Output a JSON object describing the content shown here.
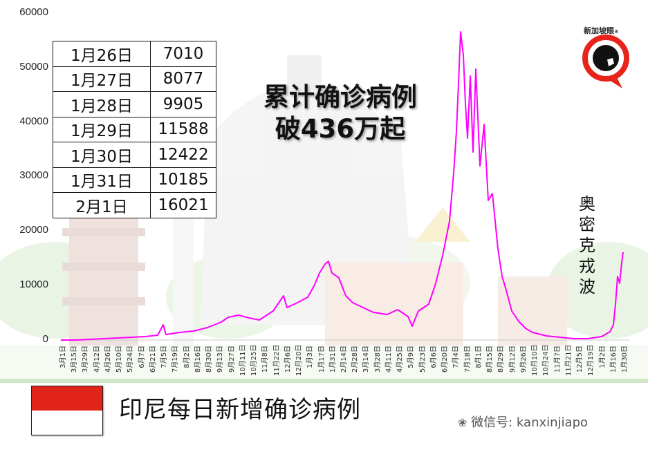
{
  "headline": {
    "line1": "累计确诊病例",
    "line2": "破436万起"
  },
  "footer": {
    "title": "印尼每日新增确诊病例",
    "wechat_label": "微信号: kanxinjiapo",
    "flag": {
      "top_color": "#e0241a",
      "bottom_color": "#ffffff"
    }
  },
  "logo": {
    "text": "新加坡眼",
    "registered": "®",
    "ring_color": "#e8231a"
  },
  "annotation": {
    "chars": [
      "奥",
      "密",
      "克",
      "戎",
      "波"
    ]
  },
  "recent_table": {
    "rows": [
      {
        "date": "1月26日",
        "value": "7010"
      },
      {
        "date": "1月27日",
        "value": "8077"
      },
      {
        "date": "1月28日",
        "value": "9905"
      },
      {
        "date": "1月29日",
        "value": "11588"
      },
      {
        "date": "1月30日",
        "value": "12422"
      },
      {
        "date": "1月31日",
        "value": "10185"
      },
      {
        "date": "2月1日",
        "value": "16021"
      }
    ]
  },
  "chart_data": {
    "type": "line",
    "title": "印尼每日新增确诊病例",
    "subtitle": "累计确诊病例破436万起",
    "xlabel": "",
    "ylabel": "",
    "ylim": [
      0,
      60000
    ],
    "yticks": [
      "0",
      "10000",
      "20000",
      "30000",
      "40000",
      "50000",
      "60000"
    ],
    "grid": false,
    "legend": "none",
    "line_color": "#ff00ff",
    "x_tick_labels": [
      "3月1日",
      "3月15日",
      "3月29日",
      "4月12日",
      "4月26日",
      "5月10日",
      "5月24日",
      "6月7日",
      "6月21日",
      "7月5日",
      "7月19日",
      "8月2日",
      "8月16日",
      "8月30日",
      "9月13日",
      "9月27日",
      "10月11日",
      "10月25日",
      "11月8日",
      "11月22日",
      "12月6日",
      "12月20日",
      "1月3日",
      "1月17日",
      "1月31日",
      "2月14日",
      "2月28日",
      "3月14日",
      "3月28日",
      "4月11日",
      "4月25日",
      "5月9日",
      "5月23日",
      "6月6日",
      "6月20日",
      "7月4日",
      "7月18日",
      "8月1日",
      "8月15日",
      "8月29日",
      "9月12日",
      "9月26日",
      "10月10日",
      "10月24日",
      "11月7日",
      "11月21日",
      "12月5日",
      "12月19日",
      "1月2日",
      "1月16日",
      "1月30日"
    ],
    "annotations": [
      "奥密克戎波"
    ],
    "series": [
      {
        "name": "每日新增确诊",
        "x": [
          "3月1日",
          "3月15日",
          "3月29日",
          "4月12日",
          "4月26日",
          "5月10日",
          "5月24日",
          "6月7日",
          "6月21日",
          "7月5日",
          "7月19日",
          "8月2日",
          "8月16日",
          "8月30日",
          "9月13日",
          "9月27日",
          "10月11日",
          "10月25日",
          "11月8日",
          "11月22日",
          "12月6日",
          "12月20日",
          "1月3日",
          "1月17日",
          "1月31日",
          "2月14日",
          "2月28日",
          "3月14日",
          "3月28日",
          "4月11日",
          "4月25日",
          "5月9日",
          "5月23日",
          "6月6日",
          "6月20日",
          "7月4日",
          "7月18日",
          "8月1日",
          "8月15日",
          "8月29日",
          "9月12日",
          "9月26日",
          "10月10日",
          "10月24日",
          "11月7日",
          "11月21日",
          "12月5日",
          "12月19日",
          "1月2日",
          "1月16日",
          "1月30日"
        ],
        "values": [
          0,
          40,
          120,
          300,
          350,
          480,
          600,
          800,
          1100,
          1500,
          1700,
          2000,
          2100,
          2400,
          3400,
          4300,
          4200,
          3800,
          4400,
          5000,
          6000,
          6800,
          7500,
          11000,
          12500,
          9000,
          6500,
          5500,
          5000,
          4500,
          5000,
          4900,
          3500,
          5800,
          11500,
          28000,
          56000,
          35000,
          24000,
          12000,
          4000,
          1800,
          1100,
          650,
          400,
          400,
          250,
          200,
          300,
          1200,
          12422
        ]
      }
    ],
    "recent_values": [
      {
        "date": "1月26日",
        "value": 7010
      },
      {
        "date": "1月27日",
        "value": 8077
      },
      {
        "date": "1月28日",
        "value": 9905
      },
      {
        "date": "1月29日",
        "value": 11588
      },
      {
        "date": "1月30日",
        "value": 12422
      },
      {
        "date": "1月31日",
        "value": 10185
      },
      {
        "date": "2月1日",
        "value": 16021
      }
    ]
  }
}
